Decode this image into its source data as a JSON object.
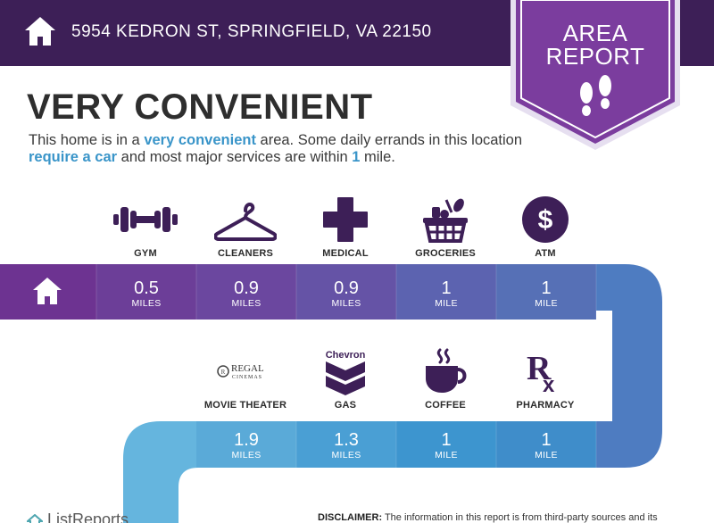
{
  "header": {
    "address": "5954 KEDRON ST, SPRINGFIELD, VA 22150",
    "icon": "house-icon",
    "background": "#3d1f57"
  },
  "badge": {
    "line1": "AREA",
    "line2": "REPORT",
    "icon": "footprints-icon",
    "color": "#7b3d9e"
  },
  "title": "VERY CONVENIENT",
  "description": {
    "part1": "This home is in a ",
    "highlight1": "very convenient",
    "part2": " area. Some daily errands in this location ",
    "highlight2": "require a car",
    "part3": " and most major services are within ",
    "highlight3": "1",
    "part4": " mile."
  },
  "row1": [
    {
      "label": "GYM",
      "value": "0.5",
      "unit": "MILES",
      "icon": "dumbbell-icon"
    },
    {
      "label": "CLEANERS",
      "value": "0.9",
      "unit": "MILES",
      "icon": "hanger-icon"
    },
    {
      "label": "MEDICAL",
      "value": "0.9",
      "unit": "MILES",
      "icon": "medical-cross-icon"
    },
    {
      "label": "GROCERIES",
      "value": "1",
      "unit": "MILE",
      "icon": "basket-icon"
    },
    {
      "label": "ATM",
      "value": "1",
      "unit": "MILE",
      "icon": "dollar-icon"
    }
  ],
  "row2": [
    {
      "label": "MOVIE THEATER",
      "value": "1.9",
      "unit": "MILES",
      "icon": "regal-cinemas-logo",
      "logo_text1": "REGAL",
      "logo_text2": "CINEMAS"
    },
    {
      "label": "GAS",
      "value": "1.3",
      "unit": "MILES",
      "icon": "chevron-logo",
      "logo_text1": "Chevron"
    },
    {
      "label": "COFFEE",
      "value": "1",
      "unit": "MILE",
      "icon": "coffee-cup-icon"
    },
    {
      "label": "PHARMACY",
      "value": "1",
      "unit": "MILE",
      "icon": "rx-icon",
      "logo_text1": "R",
      "logo_text2": "x"
    }
  ],
  "footer": {
    "logo": "ListReports",
    "disclaimer_label": "DISCLAIMER:",
    "disclaimer_text": " The information in this report is from third-party sources and its"
  }
}
